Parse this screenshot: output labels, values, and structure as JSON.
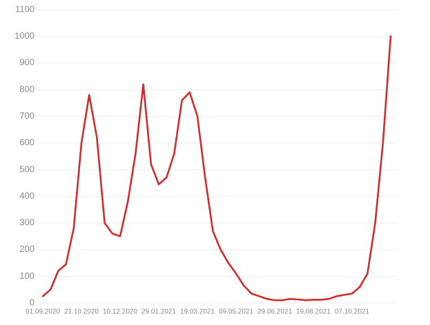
{
  "chart_data": {
    "type": "line",
    "categories": [
      "01.09.2020",
      null,
      null,
      null,
      null,
      "21.10.2020",
      null,
      null,
      null,
      null,
      "10.12.2020",
      null,
      null,
      null,
      null,
      "29.01.2021",
      null,
      null,
      null,
      null,
      "19.03.2021",
      null,
      null,
      null,
      null,
      "09.05.2021",
      null,
      null,
      null,
      null,
      "29.06.2021",
      null,
      null,
      null,
      null,
      "19.08.2021",
      null,
      null,
      null,
      null,
      "07.10.2021",
      null,
      null,
      null,
      null,
      null
    ],
    "values": [
      25,
      50,
      120,
      145,
      280,
      600,
      780,
      620,
      300,
      260,
      250,
      380,
      560,
      820,
      520,
      445,
      470,
      560,
      760,
      790,
      700,
      470,
      270,
      200,
      150,
      110,
      65,
      35,
      25,
      15,
      10,
      10,
      15,
      13,
      10,
      12,
      12,
      15,
      25,
      30,
      35,
      60,
      110,
      300,
      600,
      1000
    ],
    "color": "#d32a2a",
    "ylim": [
      0,
      1100
    ],
    "yticks": [
      0,
      100,
      200,
      300,
      400,
      500,
      600,
      700,
      800,
      900,
      1000,
      1100
    ],
    "grid": true
  }
}
